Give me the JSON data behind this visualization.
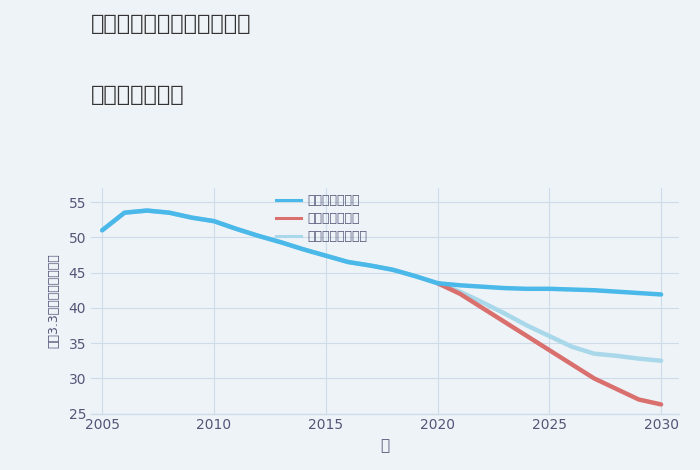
{
  "title_line1": "兵庫県姫路市北条宮の町の",
  "title_line2": "土地の価格推移",
  "xlabel": "年",
  "ylabel": "坪（3.3㎡）単価（万円）",
  "background_color": "#eef3f8",
  "plot_background": "#eef3f8",
  "good_scenario": {
    "label": "グッドシナリオ",
    "color": "#4ab8e8",
    "x": [
      2005,
      2006,
      2007,
      2008,
      2009,
      2010,
      2011,
      2012,
      2013,
      2014,
      2015,
      2016,
      2017,
      2018,
      2019,
      2020,
      2021,
      2022,
      2023,
      2024,
      2025,
      2026,
      2027,
      2028,
      2029,
      2030
    ],
    "y": [
      51.0,
      53.5,
      53.8,
      53.5,
      52.8,
      52.3,
      51.2,
      50.2,
      49.3,
      48.3,
      47.4,
      46.5,
      46.0,
      45.4,
      44.5,
      43.5,
      43.2,
      43.0,
      42.8,
      42.7,
      42.7,
      42.6,
      42.5,
      42.3,
      42.1,
      41.9
    ]
  },
  "bad_scenario": {
    "label": "バッドシナリオ",
    "color": "#d9706e",
    "x": [
      2020,
      2021,
      2022,
      2023,
      2024,
      2025,
      2026,
      2027,
      2028,
      2029,
      2030
    ],
    "y": [
      43.5,
      42.0,
      40.0,
      38.0,
      36.0,
      34.0,
      32.0,
      30.0,
      28.5,
      27.0,
      26.3
    ]
  },
  "normal_scenario": {
    "label": "ノーマルシナリオ",
    "color": "#a8d8ea",
    "x": [
      2005,
      2006,
      2007,
      2008,
      2009,
      2010,
      2011,
      2012,
      2013,
      2014,
      2015,
      2016,
      2017,
      2018,
      2019,
      2020,
      2021,
      2022,
      2023,
      2024,
      2025,
      2026,
      2027,
      2028,
      2029,
      2030
    ],
    "y": [
      51.0,
      53.5,
      53.8,
      53.5,
      52.8,
      52.3,
      51.2,
      50.2,
      49.3,
      48.3,
      47.4,
      46.5,
      46.0,
      45.4,
      44.5,
      43.5,
      42.3,
      40.8,
      39.2,
      37.5,
      36.0,
      34.5,
      33.5,
      33.2,
      32.8,
      32.5
    ]
  },
  "ylim": [
    25,
    57
  ],
  "xlim": [
    2004.5,
    2030.8
  ],
  "yticks": [
    25,
    30,
    35,
    40,
    45,
    50,
    55
  ],
  "xticks": [
    2005,
    2010,
    2015,
    2020,
    2025,
    2030
  ],
  "grid_color": "#ccdce8",
  "title_color": "#333333",
  "tick_color": "#555577",
  "line_width": 3.2
}
